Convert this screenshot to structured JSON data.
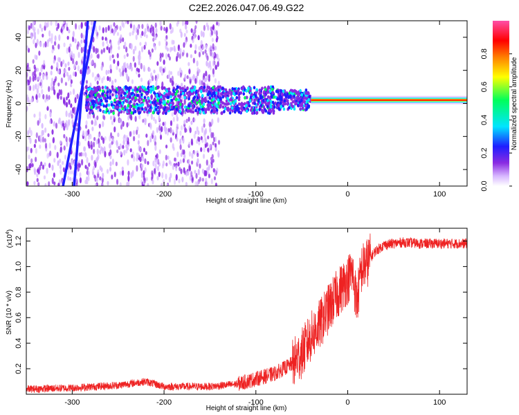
{
  "title": "C2E2.2026.047.06.49.G22",
  "chart_data": [
    {
      "type": "heatmap",
      "xlabel": "Height of straight line (km)",
      "ylabel": "Frequency (Hz)",
      "xlim": [
        -350,
        130
      ],
      "ylim": [
        -50,
        50
      ],
      "xticks": [
        -300,
        -200,
        -100,
        0,
        100
      ],
      "xtick_labels": [
        "-300",
        "-200",
        "-100",
        "0",
        "100"
      ],
      "yticks": [
        -40,
        -20,
        0,
        20,
        40
      ],
      "ytick_labels": [
        "-40",
        "-20",
        "0",
        "20",
        "40"
      ],
      "colorbar": {
        "label": "Normalized spectral amplitude",
        "range": [
          0,
          1
        ],
        "ticks": [
          0.0,
          0.2,
          0.4,
          0.6,
          0.8
        ],
        "tick_labels": [
          "0.0",
          "0.2",
          "0.4",
          "0.6",
          "0.8"
        ],
        "colors": [
          "#ffffff",
          "#d8b8ff",
          "#8a2be2",
          "#1e1eff",
          "#00e5ff",
          "#00ff5a",
          "#ffff00",
          "#ff7f00",
          "#ff0000",
          "#ff4fa8"
        ]
      },
      "features": {
        "carrier_frequency_hz": 2,
        "tone_region_km": [
          -40,
          130
        ],
        "noisy_band_region_km": [
          -285,
          -40
        ],
        "scatter_noise_region_km": [
          -350,
          -140
        ],
        "diagonal_lines": [
          {
            "x_at_ymin": -310,
            "x_at_ymax": -275
          },
          {
            "x_at_ymin": -298,
            "x_at_ymax": -283
          }
        ]
      },
      "grid": false
    },
    {
      "type": "line",
      "xlabel": "Height of straight line (km)",
      "ylabel": "SNR (10 * v/v)",
      "y_multiplier_label": "(x10",
      "y_multiplier_exp": "4",
      "y_multiplier_close": ")",
      "xlim": [
        -350,
        130
      ],
      "ylim": [
        0,
        1.3
      ],
      "xticks": [
        -300,
        -200,
        -100,
        0,
        100
      ],
      "xtick_labels": [
        "-300",
        "-200",
        "-100",
        "0",
        "100"
      ],
      "yticks": [
        0.2,
        0.4,
        0.6,
        0.8,
        1.0,
        1.2
      ],
      "ytick_labels": [
        "0.2",
        "0.4",
        "0.6",
        "0.8",
        "1.0",
        "1.2"
      ],
      "series": [
        {
          "color": "#ee2222",
          "x": [
            -350,
            -300,
            -250,
            -220,
            -200,
            -150,
            -120,
            -100,
            -80,
            -60,
            -50,
            -40,
            -30,
            -20,
            -10,
            0,
            5,
            10,
            15,
            20,
            30,
            40,
            60,
            80,
            100,
            130
          ],
          "y": [
            0.04,
            0.05,
            0.07,
            0.1,
            0.06,
            0.06,
            0.08,
            0.12,
            0.16,
            0.24,
            0.32,
            0.45,
            0.55,
            0.68,
            0.8,
            0.9,
            0.96,
            0.72,
            0.98,
            1.02,
            1.12,
            1.17,
            1.19,
            1.18,
            1.18,
            1.18
          ]
        }
      ],
      "grid": false
    }
  ]
}
